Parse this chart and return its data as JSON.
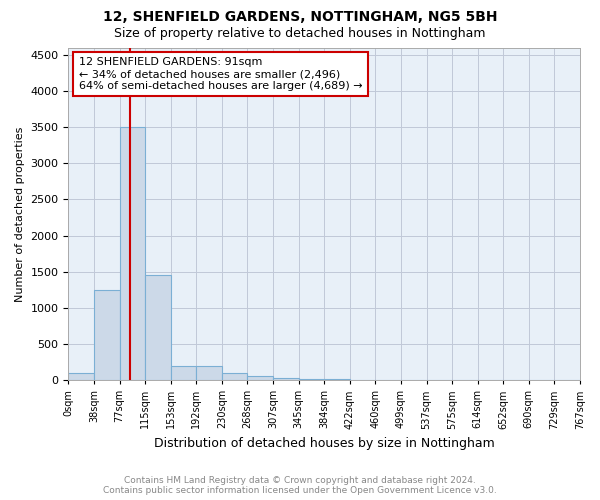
{
  "title": "12, SHENFIELD GARDENS, NOTTINGHAM, NG5 5BH",
  "subtitle": "Size of property relative to detached houses in Nottingham",
  "xlabel": "Distribution of detached houses by size in Nottingham",
  "ylabel": "Number of detached properties",
  "footnote1": "Contains HM Land Registry data © Crown copyright and database right 2024.",
  "footnote2": "Contains public sector information licensed under the Open Government Licence v3.0.",
  "annotation_line1": "12 SHENFIELD GARDENS: 91sqm",
  "annotation_line2": "← 34% of detached houses are smaller (2,496)",
  "annotation_line3": "64% of semi-detached houses are larger (4,689) →",
  "property_size": 91,
  "ylim": [
    0,
    4600
  ],
  "yticks": [
    0,
    500,
    1000,
    1500,
    2000,
    2500,
    3000,
    3500,
    4000,
    4500
  ],
  "bin_size": 38,
  "num_bins": 20,
  "bar_color": "#ccd9e8",
  "bar_edgecolor": "#7bafd4",
  "redline_color": "#cc0000",
  "annotation_box_color": "#cc0000",
  "grid_color": "#c0c8d8",
  "plot_bg_color": "#e8f0f8",
  "background_color": "#ffffff",
  "bin_labels": [
    "0sqm",
    "38sqm",
    "77sqm",
    "115sqm",
    "153sqm",
    "192sqm",
    "230sqm",
    "268sqm",
    "307sqm",
    "345sqm",
    "384sqm",
    "422sqm",
    "460sqm",
    "499sqm",
    "537sqm",
    "575sqm",
    "614sqm",
    "652sqm",
    "690sqm",
    "729sqm",
    "767sqm"
  ],
  "bar_heights": [
    100,
    1250,
    3500,
    1450,
    200,
    200,
    100,
    60,
    30,
    20,
    10,
    5,
    0,
    0,
    0,
    5,
    0,
    0,
    0,
    0
  ]
}
